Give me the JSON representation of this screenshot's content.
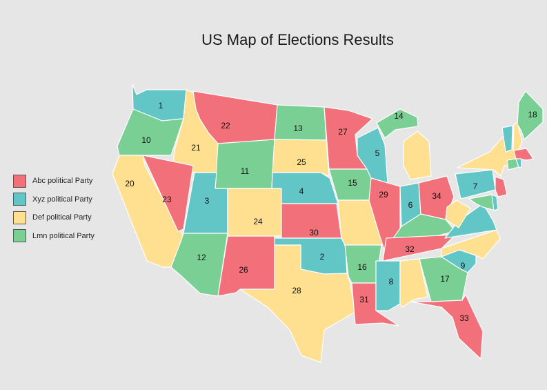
{
  "title": "US Map of Elections Results",
  "legend": [
    {
      "label": "Abc political Party",
      "color": "#f1707a"
    },
    {
      "label": "Xyz political Party",
      "color": "#62c6c6"
    },
    {
      "label": "Def political Party",
      "color": "#ffdf90"
    },
    {
      "label": "Lmn political Party",
      "color": "#79cf94"
    }
  ],
  "states": [
    {
      "id": "WA",
      "label": "1",
      "party": "Xyz political Party",
      "color": "#62c6c6"
    },
    {
      "id": "OR",
      "label": "10",
      "party": "Lmn political Party",
      "color": "#79cf94"
    },
    {
      "id": "CA",
      "label": "20",
      "party": "Def political Party",
      "color": "#ffdf90"
    },
    {
      "id": "ID",
      "label": "21",
      "party": "Def political Party",
      "color": "#ffdf90"
    },
    {
      "id": "NV",
      "label": "23",
      "party": "Abc political Party",
      "color": "#f1707a"
    },
    {
      "id": "MT",
      "label": "22",
      "party": "Abc political Party",
      "color": "#f1707a"
    },
    {
      "id": "WY",
      "label": "11",
      "party": "Lmn political Party",
      "color": "#79cf94"
    },
    {
      "id": "UT",
      "label": "3",
      "party": "Xyz political Party",
      "color": "#62c6c6"
    },
    {
      "id": "AZ",
      "label": "12",
      "party": "Lmn political Party",
      "color": "#79cf94"
    },
    {
      "id": "CO",
      "label": "24",
      "party": "Def political Party",
      "color": "#ffdf90"
    },
    {
      "id": "NM",
      "label": "26",
      "party": "Abc political Party",
      "color": "#f1707a"
    },
    {
      "id": "ND",
      "label": "13",
      "party": "Lmn political Party",
      "color": "#79cf94"
    },
    {
      "id": "SD",
      "label": "25",
      "party": "Def political Party",
      "color": "#ffdf90"
    },
    {
      "id": "NE",
      "label": "4",
      "party": "Xyz political Party",
      "color": "#62c6c6"
    },
    {
      "id": "KS",
      "label": "30",
      "party": "Abc political Party",
      "color": "#f1707a"
    },
    {
      "id": "OK",
      "label": "2",
      "party": "Xyz political Party",
      "color": "#62c6c6"
    },
    {
      "id": "TX",
      "label": "28",
      "party": "Def political Party",
      "color": "#ffdf90"
    },
    {
      "id": "MN",
      "label": "27",
      "party": "Abc political Party",
      "color": "#f1707a"
    },
    {
      "id": "IA",
      "label": "15",
      "party": "Lmn political Party",
      "color": "#79cf94"
    },
    {
      "id": "MO",
      "label": "",
      "party": "Def political Party",
      "color": "#ffdf90"
    },
    {
      "id": "AR",
      "label": "16",
      "party": "Lmn political Party",
      "color": "#79cf94"
    },
    {
      "id": "LA",
      "label": "31",
      "party": "Abc political Party",
      "color": "#f1707a"
    },
    {
      "id": "WI",
      "label": "5",
      "party": "Xyz political Party",
      "color": "#62c6c6"
    },
    {
      "id": "IL",
      "label": "29",
      "party": "Abc political Party",
      "color": "#f1707a"
    },
    {
      "id": "MI-UP",
      "label": "14",
      "party": "Lmn political Party",
      "color": "#79cf94"
    },
    {
      "id": "MI-LP",
      "label": "",
      "party": "Def political Party",
      "color": "#ffdf90"
    },
    {
      "id": "IN",
      "label": "6",
      "party": "Xyz political Party",
      "color": "#62c6c6"
    },
    {
      "id": "OH",
      "label": "34",
      "party": "Abc political Party",
      "color": "#f1707a"
    },
    {
      "id": "KY",
      "label": "",
      "party": "Lmn political Party",
      "color": "#79cf94"
    },
    {
      "id": "TN",
      "label": "32",
      "party": "Abc political Party",
      "color": "#f1707a"
    },
    {
      "id": "MS",
      "label": "8",
      "party": "Xyz political Party",
      "color": "#62c6c6"
    },
    {
      "id": "AL",
      "label": "",
      "party": "Def political Party",
      "color": "#ffdf90"
    },
    {
      "id": "GA",
      "label": "17",
      "party": "Lmn political Party",
      "color": "#79cf94"
    },
    {
      "id": "FL",
      "label": "33",
      "party": "Abc political Party",
      "color": "#f1707a"
    },
    {
      "id": "SC",
      "label": "9",
      "party": "Xyz political Party",
      "color": "#62c6c6"
    },
    {
      "id": "NC",
      "label": "",
      "party": "Def political Party",
      "color": "#ffdf90"
    },
    {
      "id": "VA",
      "label": "",
      "party": "Xyz political Party",
      "color": "#62c6c6"
    },
    {
      "id": "WV",
      "label": "",
      "party": "Def political Party",
      "color": "#ffdf90"
    },
    {
      "id": "PA",
      "label": "7",
      "party": "Xyz political Party",
      "color": "#62c6c6"
    },
    {
      "id": "NY",
      "label": "",
      "party": "Def political Party",
      "color": "#ffdf90"
    },
    {
      "id": "NJ",
      "label": "",
      "party": "Abc political Party",
      "color": "#f1707a"
    },
    {
      "id": "MD",
      "label": "",
      "party": "Lmn political Party",
      "color": "#79cf94"
    },
    {
      "id": "DE",
      "label": "",
      "party": "Xyz political Party",
      "color": "#62c6c6"
    },
    {
      "id": "VT",
      "label": "",
      "party": "Xyz political Party",
      "color": "#62c6c6"
    },
    {
      "id": "NH",
      "label": "",
      "party": "Def political Party",
      "color": "#ffdf90"
    },
    {
      "id": "ME",
      "label": "18",
      "party": "Lmn political Party",
      "color": "#79cf94"
    },
    {
      "id": "MA",
      "label": "",
      "party": "Abc political Party",
      "color": "#f1707a"
    },
    {
      "id": "CT",
      "label": "",
      "party": "Lmn political Party",
      "color": "#79cf94"
    },
    {
      "id": "RI",
      "label": "",
      "party": "Xyz political Party",
      "color": "#62c6c6"
    }
  ]
}
